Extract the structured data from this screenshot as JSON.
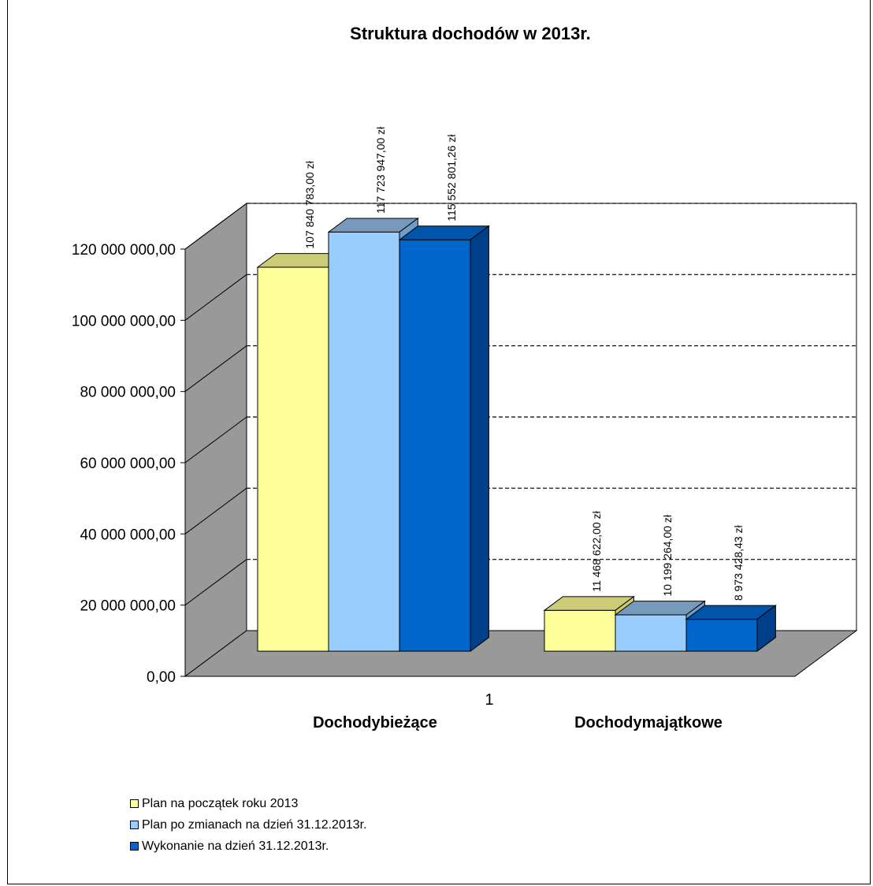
{
  "chart_data": {
    "type": "bar",
    "title": "Struktura dochodów  w 2013r.",
    "x_tick_label": "1",
    "categories": [
      "Dochodybieżące",
      "Dochodymajątkowe"
    ],
    "ylim": [
      0,
      120000000
    ],
    "y_ticks": [
      "0,00",
      "20 000 000,00",
      "40 000 000,00",
      "60 000 000,00",
      "80 000 000,00",
      "100 000 000,00",
      "120 000 000,00"
    ],
    "grid": true,
    "legend_position": "bottom-left",
    "series": [
      {
        "name": "Plan na początek roku 2013",
        "color": "#FFFF99",
        "values": [
          107840783.0,
          11468622.0
        ],
        "labels": [
          "107 840 783,00  zł",
          "11 468 622,00  zł"
        ]
      },
      {
        "name": "Plan po zmianach na dzień 31.12.2013r.",
        "color": "#99CCFF",
        "values": [
          117723947.0,
          10199264.0
        ],
        "labels": [
          "117 723 947,00  zł",
          "10 199 264,00  zł"
        ]
      },
      {
        "name": "Wykonanie na dzień 31.12.2013r.",
        "color": "#0066CC",
        "values": [
          115552801.26,
          8973428.43
        ],
        "labels": [
          "115 552 801,26  zł",
          "8 973 428,43  zł"
        ]
      }
    ]
  }
}
